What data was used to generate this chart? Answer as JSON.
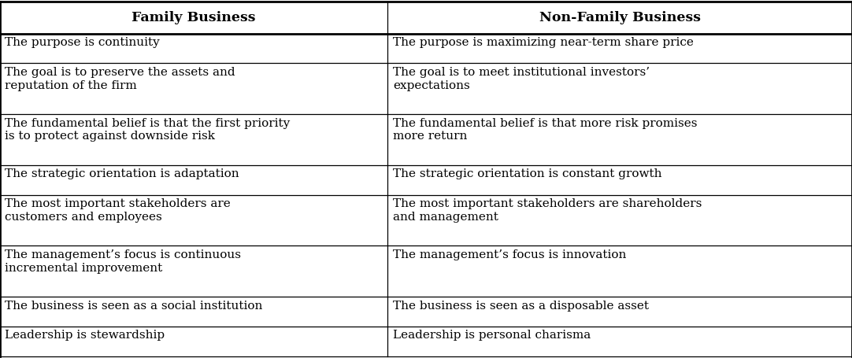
{
  "col1_header": "Family Business",
  "col2_header": "Non-Family Business",
  "rows": [
    [
      "The purpose is continuity",
      "The purpose is maximizing near-term share price"
    ],
    [
      "The goal is to preserve the assets and\nreputation of the firm",
      "The goal is to meet institutional investors’\nexpectations"
    ],
    [
      "The fundamental belief is that the first priority\nis to protect against downside risk",
      "The fundamental belief is that more risk promises\nmore return"
    ],
    [
      "The strategic orientation is adaptation",
      "The strategic orientation is constant growth"
    ],
    [
      "The most important stakeholders are\ncustomers and employees",
      "The most important stakeholders are shareholders\nand management"
    ],
    [
      "The management’s focus is continuous\nincremental improvement",
      "The management’s focus is innovation"
    ],
    [
      "The business is seen as a social institution",
      "The business is seen as a disposable asset"
    ],
    [
      "Leadership is stewardship",
      "Leadership is personal charisma"
    ]
  ],
  "bg_color": "#ffffff",
  "text_color": "#000000",
  "border_color": "#000000",
  "font_size": 11.0,
  "header_font_size": 12.5,
  "col_split": 0.455,
  "row_line_heights": [
    1,
    2,
    2,
    1,
    2,
    2,
    1,
    1
  ],
  "header_lines": 1
}
